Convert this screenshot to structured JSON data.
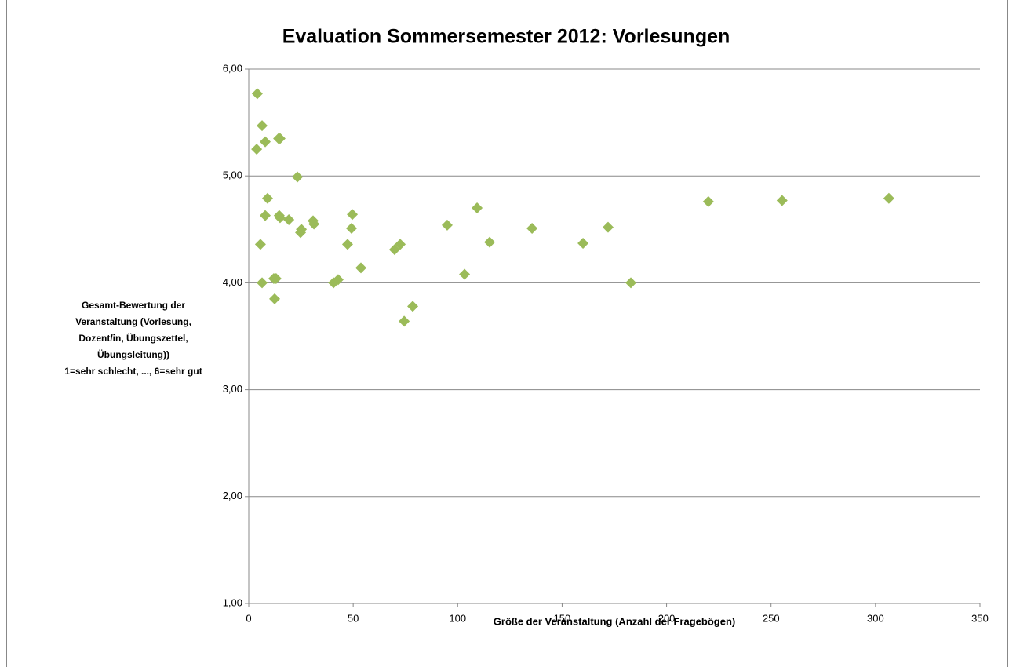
{
  "chart_data": {
    "type": "scatter",
    "title": "Evaluation Sommersemester 2012: Vorlesungen",
    "xlabel": "Größe der Veranstaltung (Anzahl der Fragebögen)",
    "ylabel": [
      "Gesamt-Bewertung der",
      "Veranstaltung (Vorlesung,",
      "Dozent/in, Übungszettel,",
      "Übungsleitung))",
      "1=sehr schlecht, ..., 6=sehr gut"
    ],
    "color": "#9bbb59",
    "grid": true,
    "xlim": [
      0,
      350
    ],
    "xticks": [
      0,
      50,
      100,
      150,
      200,
      250,
      300,
      350
    ],
    "ylim": [
      1,
      6
    ],
    "yticks": [
      {
        "value": 1,
        "label": "1,00"
      },
      {
        "value": 2,
        "label": "2,00"
      },
      {
        "value": 3,
        "label": "3,00"
      },
      {
        "value": 4,
        "label": "4,00"
      },
      {
        "value": 5,
        "label": "5,00"
      },
      {
        "value": 6,
        "label": "6,00"
      }
    ],
    "x": [
      4.1,
      6.4,
      7.9,
      3.8,
      14.3,
      15,
      23.3,
      9,
      7.9,
      14.6,
      15,
      19.2,
      24.8,
      25.2,
      30.8,
      31.2,
      5.6,
      6.4,
      12,
      13.1,
      12.4,
      40.6,
      42.8,
      47.3,
      49.6,
      49.2,
      53.7,
      69.8,
      72.5,
      74.4,
      78.5,
      95,
      103.3,
      109.3,
      115.3,
      135.6,
      160,
      172,
      182.9,
      220,
      255.3,
      306.4
    ],
    "y": [
      5.77,
      5.47,
      5.32,
      5.25,
      5.35,
      5.35,
      4.99,
      4.79,
      4.63,
      4.63,
      4.61,
      4.59,
      4.47,
      4.5,
      4.58,
      4.55,
      4.36,
      4.0,
      4.04,
      4.04,
      3.85,
      4.0,
      4.03,
      4.36,
      4.64,
      4.51,
      4.14,
      4.31,
      4.36,
      3.64,
      3.78,
      4.54,
      4.08,
      4.7,
      4.38,
      4.51,
      4.37,
      4.52,
      4.0,
      4.76,
      4.77,
      4.79
    ]
  }
}
